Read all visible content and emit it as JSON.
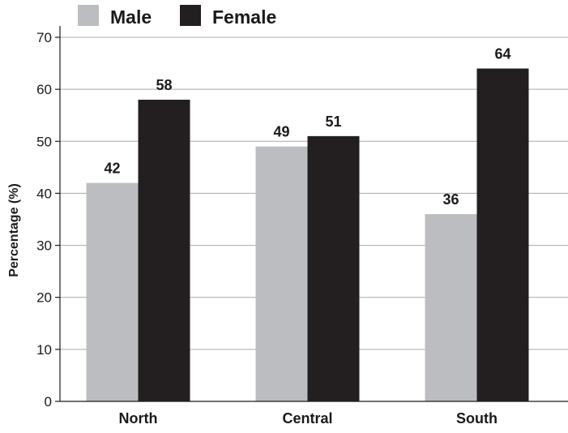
{
  "chart_data": {
    "type": "bar",
    "categories": [
      "North",
      "Central",
      "South"
    ],
    "series": [
      {
        "name": "Male",
        "values": [
          42,
          49,
          36
        ],
        "color": "#bcbdc1"
      },
      {
        "name": "Female",
        "values": [
          58,
          51,
          64
        ],
        "color": "#231f20"
      }
    ],
    "data_labels": {
      "Male": [
        "42",
        "49",
        "36"
      ],
      "Female": [
        "58",
        "51",
        "64"
      ]
    },
    "title": "",
    "xlabel": "",
    "ylabel": "Percentage (%)",
    "ylim": [
      0,
      70
    ],
    "yticks": [
      0,
      10,
      20,
      30,
      40,
      50,
      60,
      70
    ],
    "grid": true,
    "legend_position": "top-left"
  }
}
